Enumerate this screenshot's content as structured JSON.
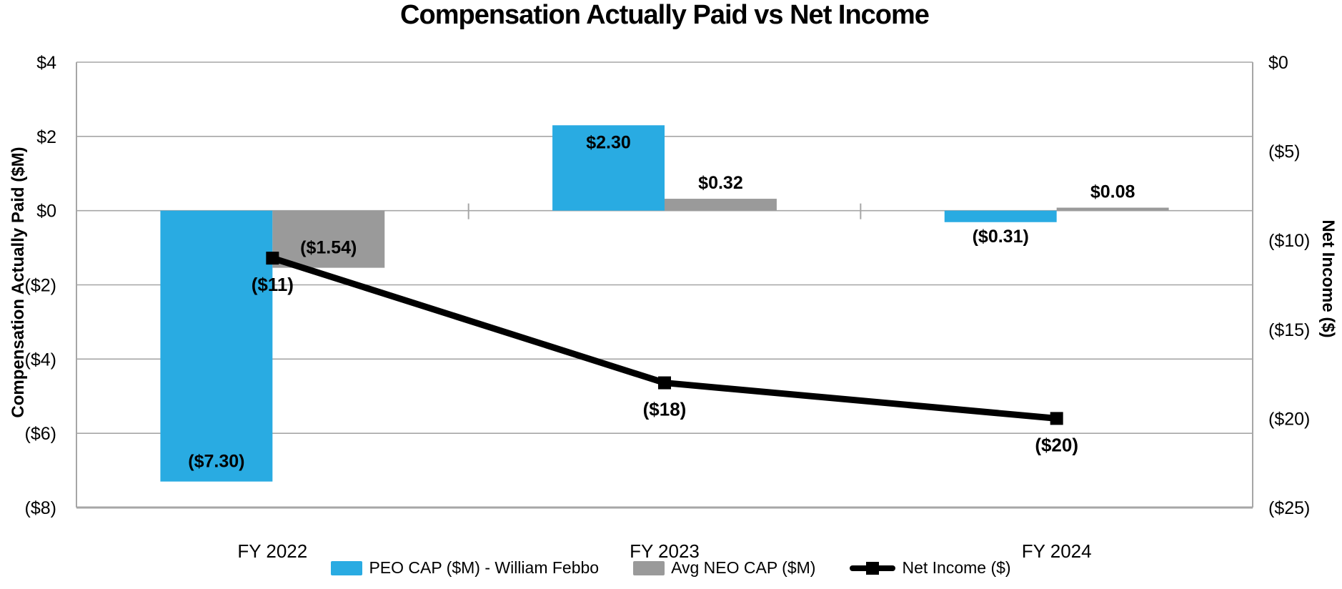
{
  "chart_data": {
    "type": "combo-bar-line",
    "title": "Compensation Actually Paid vs Net Income",
    "categories": [
      "FY 2022",
      "FY  2023",
      "FY 2024"
    ],
    "left_axis": {
      "title": "Compensation Actually Paid ($M)",
      "tick_labels": [
        "$4",
        "$2",
        "$0",
        "($2)",
        "($4)",
        "($6)",
        "($8)"
      ],
      "tick_values": [
        4,
        2,
        0,
        -2,
        -4,
        -6,
        -8
      ],
      "range": [
        4,
        -8
      ]
    },
    "right_axis": {
      "title": "Net Income ($)",
      "tick_labels": [
        "$0",
        "($5)",
        "($10)",
        "($15)",
        "($20)",
        "($25)"
      ],
      "tick_values": [
        0,
        -5,
        -10,
        -15,
        -20,
        -25
      ],
      "range": [
        0,
        -25
      ]
    },
    "series": [
      {
        "name": "PEO CAP ($M) - William Febbo",
        "type": "bar",
        "color": "#29ABE2",
        "values": [
          -7.3,
          2.3,
          -0.31
        ],
        "labels": [
          "($7.30)",
          "$2.30",
          "($0.31)"
        ]
      },
      {
        "name": "Avg NEO CAP ($M)",
        "type": "bar",
        "color": "#9A9A9A",
        "values": [
          -1.54,
          0.32,
          0.08
        ],
        "labels": [
          "($1.54)",
          "$0.32",
          "$0.08"
        ]
      },
      {
        "name": "Net Income ($)",
        "type": "line",
        "color": "#000000",
        "values": [
          -11,
          -18,
          -20
        ],
        "labels": [
          "($11)",
          "($18)",
          "($20)"
        ]
      }
    ],
    "grid": true,
    "grid_color": "#A6A6A6",
    "legend_position": "bottom"
  }
}
